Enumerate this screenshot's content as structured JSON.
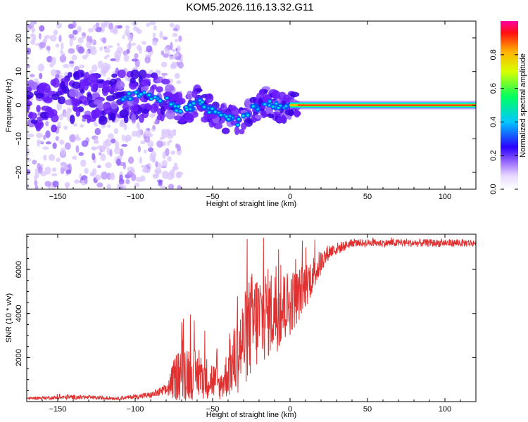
{
  "chart_data": [
    {
      "type": "heatmap",
      "title": "KOM5.2026.116.13.32.G11",
      "xlabel": "Height of straight line (km)",
      "ylabel": "Frequency (Hz)",
      "xlim": [
        -170,
        120
      ],
      "ylim": [
        -25,
        25
      ],
      "xticks": [
        -150,
        -100,
        -50,
        0,
        50,
        100
      ],
      "yticks": [
        -20,
        -10,
        0,
        10,
        20
      ],
      "colorbar": {
        "label": "Normalized spectral amplitude",
        "range": [
          0,
          1
        ],
        "ticks": [
          0.0,
          0.2,
          0.4,
          0.6,
          0.8
        ]
      },
      "ridge": [
        {
          "x": -150,
          "f": 3
        },
        {
          "x": -120,
          "f": 2
        },
        {
          "x": -100,
          "f": 3
        },
        {
          "x": -80,
          "f": 2
        },
        {
          "x": -70,
          "f": -2
        },
        {
          "x": -60,
          "f": 1
        },
        {
          "x": -50,
          "f": -2
        },
        {
          "x": -40,
          "f": -4
        },
        {
          "x": -33,
          "f": -5
        },
        {
          "x": -25,
          "f": -1
        },
        {
          "x": -15,
          "f": 1
        },
        {
          "x": -5,
          "f": -1
        },
        {
          "x": 5,
          "f": 0
        },
        {
          "x": 120,
          "f": 0
        }
      ]
    },
    {
      "type": "line",
      "xlabel": "Height of straight line (km)",
      "ylabel": "SNR (10 * v/v)",
      "xlim": [
        -170,
        120
      ],
      "ylim": [
        0,
        7600
      ],
      "xticks": [
        -150,
        -100,
        -50,
        0,
        50,
        100
      ],
      "yticks": [
        2000,
        4000,
        6000
      ],
      "color": "#e03030",
      "envelope": [
        {
          "x": -170,
          "base": 150,
          "amp": 80
        },
        {
          "x": -140,
          "base": 200,
          "amp": 150
        },
        {
          "x": -110,
          "base": 150,
          "amp": 100
        },
        {
          "x": -90,
          "base": 300,
          "amp": 200
        },
        {
          "x": -80,
          "base": 500,
          "amp": 400
        },
        {
          "x": -70,
          "base": 1500,
          "amp": 2200
        },
        {
          "x": -60,
          "base": 1200,
          "amp": 1500
        },
        {
          "x": -50,
          "base": 1000,
          "amp": 1300
        },
        {
          "x": -45,
          "base": 700,
          "amp": 900
        },
        {
          "x": -35,
          "base": 2000,
          "amp": 2500
        },
        {
          "x": -25,
          "base": 3500,
          "amp": 3500
        },
        {
          "x": -15,
          "base": 4000,
          "amp": 3000
        },
        {
          "x": -5,
          "base": 4200,
          "amp": 2500
        },
        {
          "x": 5,
          "base": 4800,
          "amp": 1800
        },
        {
          "x": 15,
          "base": 5800,
          "amp": 1200
        },
        {
          "x": 25,
          "base": 6800,
          "amp": 500
        },
        {
          "x": 40,
          "base": 7200,
          "amp": 250
        },
        {
          "x": 120,
          "base": 7200,
          "amp": 250
        }
      ]
    }
  ],
  "colors": {
    "line": "#e03030",
    "axis": "#000000"
  }
}
